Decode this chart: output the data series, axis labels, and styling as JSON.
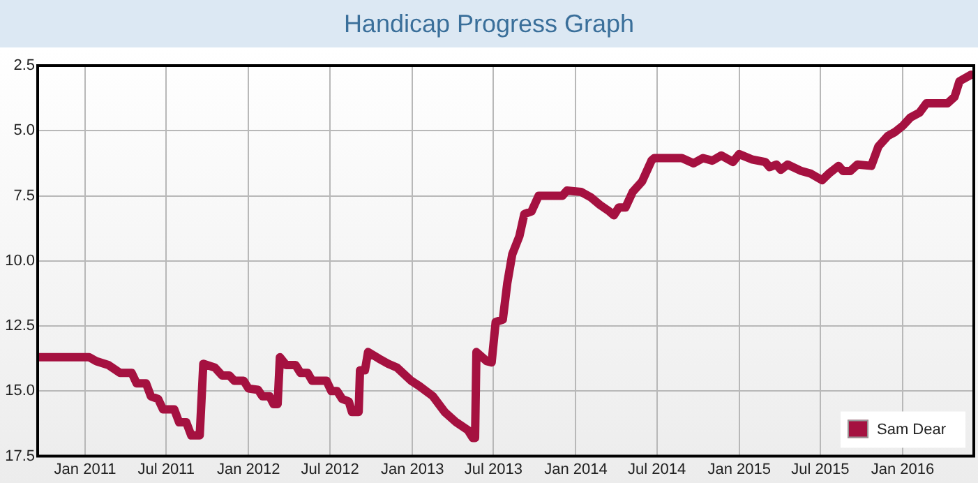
{
  "chart_data": {
    "type": "line",
    "title": "Handicap Progress Graph",
    "x": [
      "2010-09-17",
      "2011-01-10",
      "2011-01-26",
      "2011-02-22",
      "2011-03-20",
      "2011-04-15",
      "2011-04-26",
      "2011-05-17",
      "2011-05-28",
      "2011-06-13",
      "2011-06-24",
      "2011-07-19",
      "2011-07-30",
      "2011-08-15",
      "2011-08-26",
      "2011-09-14",
      "2011-09-22",
      "2011-10-18",
      "2011-11-03",
      "2011-11-19",
      "2011-11-30",
      "2011-12-21",
      "2012-01-01",
      "2012-01-22",
      "2012-02-01",
      "2012-02-17",
      "2012-02-26",
      "2012-03-06",
      "2012-03-11",
      "2012-03-25",
      "2012-04-15",
      "2012-04-26",
      "2012-05-12",
      "2012-05-22",
      "2012-06-23",
      "2012-07-04",
      "2012-07-17",
      "2012-07-28",
      "2012-08-12",
      "2012-08-19",
      "2012-09-03",
      "2012-09-06",
      "2012-09-17",
      "2012-09-24",
      "2012-10-18",
      "2012-11-08",
      "2012-11-28",
      "2012-12-29",
      "2013-01-16",
      "2013-02-16",
      "2013-03-14",
      "2013-04-09",
      "2013-05-05",
      "2013-05-16",
      "2013-05-21",
      "2013-05-24",
      "2013-06-16",
      "2013-06-27",
      "2013-07-06",
      "2013-07-22",
      "2013-08-01",
      "2013-08-12",
      "2013-08-28",
      "2013-09-08",
      "2013-09-24",
      "2013-10-10",
      "2013-12-02",
      "2013-12-12",
      "2014-01-13",
      "2014-02-03",
      "2014-02-24",
      "2014-03-17",
      "2014-03-27",
      "2014-04-07",
      "2014-04-22",
      "2014-05-08",
      "2014-05-29",
      "2014-06-19",
      "2014-06-25",
      "2014-08-26",
      "2014-09-21",
      "2014-10-12",
      "2014-11-02",
      "2014-11-22",
      "2014-12-18",
      "2015-01-01",
      "2015-01-29",
      "2015-02-28",
      "2015-03-10",
      "2015-03-25",
      "2015-04-04",
      "2015-04-19",
      "2015-05-20",
      "2015-06-10",
      "2015-07-05",
      "2015-07-20",
      "2015-08-11",
      "2015-08-21",
      "2015-09-06",
      "2015-09-22",
      "2015-10-23",
      "2015-11-08",
      "2015-11-29",
      "2015-12-15",
      "2016-01-02",
      "2016-01-18",
      "2016-02-08",
      "2016-02-23",
      "2016-04-10",
      "2016-04-26",
      "2016-05-07",
      "2016-06-02"
    ],
    "series": [
      {
        "name": "Sam Dear",
        "color": "#a51140",
        "values": [
          13.7,
          13.7,
          13.85,
          14.0,
          14.3,
          14.3,
          14.7,
          14.7,
          15.2,
          15.3,
          15.7,
          15.7,
          16.2,
          16.2,
          16.7,
          16.7,
          13.95,
          14.1,
          14.4,
          14.4,
          14.6,
          14.6,
          14.9,
          14.95,
          15.2,
          15.2,
          15.5,
          15.5,
          13.7,
          14.0,
          14.0,
          14.3,
          14.3,
          14.6,
          14.6,
          15.0,
          15.0,
          15.3,
          15.4,
          15.8,
          15.8,
          14.2,
          14.2,
          13.5,
          13.75,
          13.95,
          14.1,
          14.6,
          14.8,
          15.2,
          15.8,
          16.2,
          16.5,
          16.8,
          16.8,
          13.5,
          13.85,
          13.9,
          12.35,
          12.25,
          10.85,
          9.75,
          9.05,
          8.2,
          8.1,
          7.5,
          7.5,
          7.3,
          7.35,
          7.55,
          7.85,
          8.1,
          8.25,
          7.95,
          7.95,
          7.35,
          6.95,
          6.15,
          6.05,
          6.05,
          6.25,
          6.05,
          6.15,
          5.95,
          6.2,
          5.9,
          6.1,
          6.2,
          6.4,
          6.3,
          6.5,
          6.3,
          6.55,
          6.65,
          6.9,
          6.65,
          6.35,
          6.55,
          6.55,
          6.3,
          6.35,
          5.6,
          5.2,
          5.05,
          4.8,
          4.5,
          4.3,
          3.95,
          3.95,
          3.7,
          3.1,
          2.85
        ]
      }
    ],
    "xlim": [
      "2010-09-17",
      "2016-06-08"
    ],
    "xticks": [
      {
        "value": "2011-01-01",
        "label": "Jan 2011"
      },
      {
        "value": "2011-07-01",
        "label": "Jul 2011"
      },
      {
        "value": "2012-01-01",
        "label": "Jan 2012"
      },
      {
        "value": "2012-07-01",
        "label": "Jul 2012"
      },
      {
        "value": "2013-01-01",
        "label": "Jan 2013"
      },
      {
        "value": "2013-07-01",
        "label": "Jul 2013"
      },
      {
        "value": "2014-01-01",
        "label": "Jan 2014"
      },
      {
        "value": "2014-07-01",
        "label": "Jul 2014"
      },
      {
        "value": "2015-01-01",
        "label": "Jan 2015"
      },
      {
        "value": "2015-07-01",
        "label": "Jul 2015"
      },
      {
        "value": "2016-01-01",
        "label": "Jan 2016"
      }
    ],
    "ylim": [
      17.5,
      2.5
    ],
    "yticks": [
      2.5,
      {
        "value": 5,
        "label": "5.0"
      },
      7.5,
      {
        "value": 10,
        "label": "10.0"
      },
      12.5,
      {
        "value": 15,
        "label": "15.0"
      },
      17.5
    ],
    "grid": true,
    "legend": "bottom right",
    "marker": "none",
    "line_style": "solid"
  }
}
